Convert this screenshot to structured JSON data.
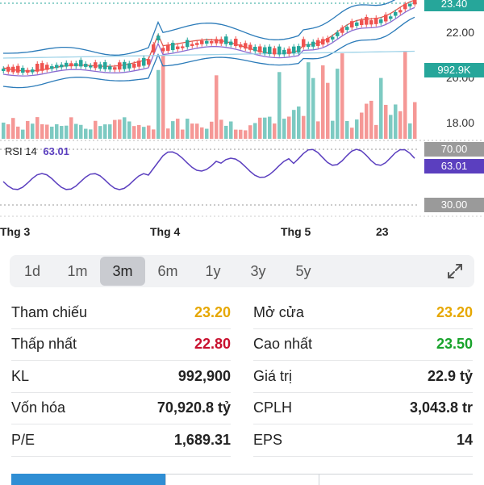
{
  "chart_data": {
    "type": "candlestick",
    "price_axis_ticks": [
      "22.00",
      "20.00",
      "18.00"
    ],
    "last_price_tag": "23.40",
    "volume_tag": "992.9K",
    "x_ticks": [
      "Thg 3",
      "Thg 4",
      "Thg 5",
      "23"
    ],
    "rsi": {
      "label": "RSI 14",
      "value": "63.01",
      "levels": [
        "70.00",
        "30.00"
      ]
    }
  },
  "periods": [
    "1d",
    "1m",
    "3m",
    "6m",
    "1y",
    "3y",
    "5y"
  ],
  "active_period": "3m",
  "stats": [
    {
      "label": "Tham chiếu",
      "value": "23.20",
      "color": "yellow"
    },
    {
      "label": "Mở cửa",
      "value": "23.20",
      "color": "yellow"
    },
    {
      "label": "Thấp nhất",
      "value": "22.80",
      "color": "red"
    },
    {
      "label": "Cao nhất",
      "value": "23.50",
      "color": "green"
    },
    {
      "label": "KL",
      "value": "992,900",
      "color": ""
    },
    {
      "label": "Giá trị",
      "value": "22.9 tỷ",
      "color": ""
    },
    {
      "label": "Vốn hóa",
      "value": "70,920.8 tỷ",
      "color": ""
    },
    {
      "label": "CPLH",
      "value": "3,043.8 tr",
      "color": ""
    },
    {
      "label": "P/E",
      "value": "1,689.31",
      "color": ""
    },
    {
      "label": "EPS",
      "value": "14",
      "color": ""
    }
  ],
  "colors": {
    "up": "#26a69a",
    "down": "#ef5350",
    "rsi": "#5b3fbf",
    "tab_active": "#2f8ed4"
  }
}
